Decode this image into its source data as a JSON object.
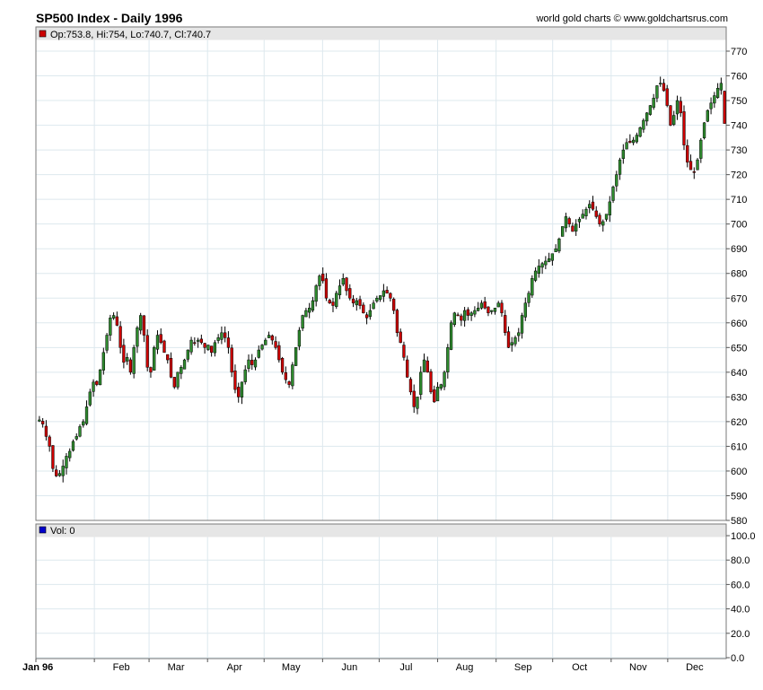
{
  "header": {
    "title": "SP500 Index - Daily 1996",
    "credit": "world gold charts © www.goldchartsrus.com"
  },
  "price_legend": "Op:753.8, Hi:754, Lo:740.7, Cl:740.7",
  "volume_legend": "Vol: 0",
  "colors": {
    "up": "#2e8b2e",
    "down": "#cc0000",
    "volume_marker": "#0000cc",
    "grid": "#dde8ee"
  },
  "chart_data": [
    {
      "type": "candlestick",
      "title": "SP500 Index - Daily 1996",
      "year": 1996,
      "x_axis_labels": [
        "Jan 96",
        "Feb",
        "Mar",
        "Apr",
        "May",
        "Jun",
        "Jul",
        "Aug",
        "Sep",
        "Oct",
        "Nov",
        "Dec"
      ],
      "y_axis": {
        "min": 580,
        "max": 770,
        "ticks": [
          580,
          590,
          600,
          610,
          620,
          630,
          640,
          650,
          660,
          670,
          680,
          690,
          700,
          710,
          720,
          730,
          740,
          750,
          760,
          770
        ]
      },
      "last_bar": {
        "open": 753.8,
        "high": 754,
        "low": 740.7,
        "close": 740.7
      },
      "approx_closes": [
        620.7,
        619,
        614,
        610,
        601,
        598,
        599,
        602,
        606,
        608,
        612,
        614,
        618,
        620,
        626,
        632,
        636,
        635,
        641,
        648,
        655,
        662,
        663,
        659,
        650,
        644,
        646,
        640,
        650,
        658,
        663,
        655,
        642,
        640,
        650,
        655,
        652,
        648,
        645,
        638,
        634,
        640,
        642,
        645,
        649,
        653,
        652,
        653,
        652,
        650,
        651,
        648,
        652,
        654,
        656,
        654,
        650,
        640,
        633,
        630,
        636,
        641,
        645,
        643,
        645,
        649,
        651,
        653,
        655,
        653,
        650,
        645,
        640,
        637,
        635,
        643,
        650,
        657,
        663,
        665,
        666,
        669,
        675,
        679,
        677,
        670,
        668,
        667,
        672,
        675,
        678,
        673,
        670,
        668,
        669,
        667,
        664,
        662,
        665,
        668,
        670,
        671,
        673,
        672,
        670,
        665,
        656,
        652,
        646,
        638,
        632,
        626,
        630,
        640,
        645,
        640,
        632,
        628,
        634,
        635,
        640,
        650,
        660,
        664,
        663,
        661,
        665,
        663,
        664,
        665,
        666,
        668,
        666,
        664,
        665,
        666,
        668,
        664,
        656,
        650,
        652,
        654,
        656,
        663,
        668,
        672,
        678,
        681,
        683,
        684,
        685,
        686,
        688,
        690,
        694,
        699,
        703,
        700,
        697,
        700,
        702,
        704,
        706,
        708,
        706,
        703,
        700,
        701,
        704,
        709,
        715,
        720,
        726,
        730,
        733,
        733,
        734,
        736,
        739,
        742,
        745,
        748,
        751,
        756,
        757,
        754,
        748,
        740,
        744,
        750,
        745,
        732,
        725,
        722,
        721,
        726,
        734,
        741,
        746,
        749,
        752,
        755,
        757,
        740.7
      ]
    },
    {
      "type": "bar",
      "title": "Vol",
      "y_axis": {
        "min": 0,
        "max": 100,
        "ticks": [
          0.0,
          20.0,
          40.0,
          60.0,
          80.0,
          100.0
        ]
      },
      "values": [
        0
      ]
    }
  ]
}
